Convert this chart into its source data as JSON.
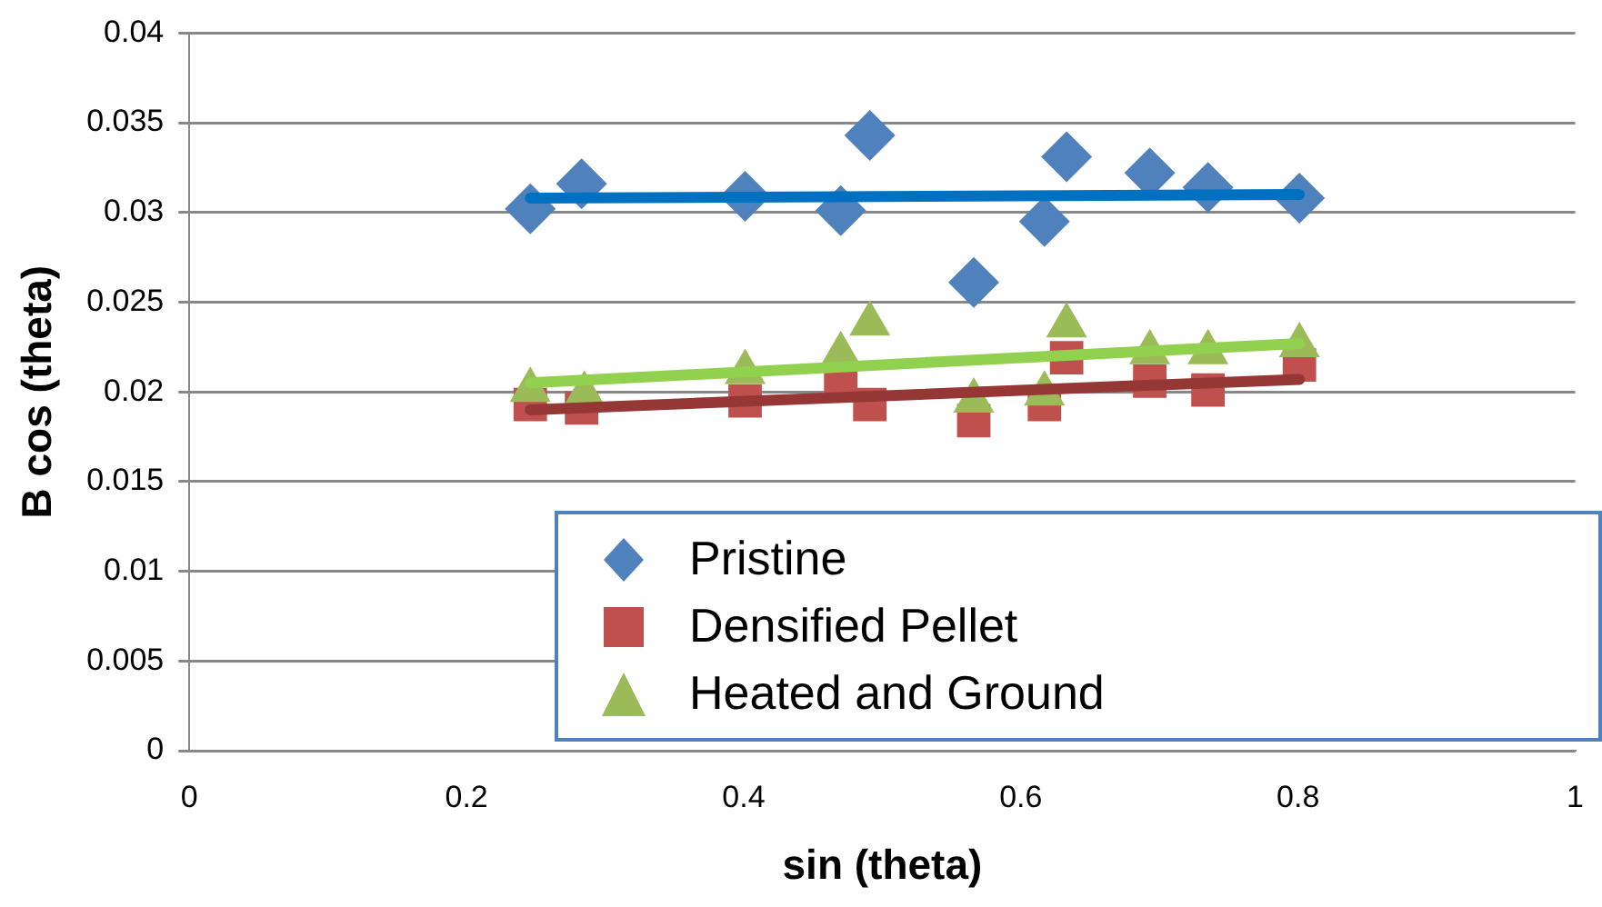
{
  "chart_data": {
    "type": "scatter",
    "xlabel": "sin (theta)",
    "ylabel": "B cos (theta)",
    "xlim": [
      0,
      1
    ],
    "xticks": [
      0,
      0.2,
      0.4,
      0.6,
      0.8,
      1
    ],
    "ylim": [
      0,
      0.04
    ],
    "yticks": [
      0,
      0.005,
      0.01,
      0.015,
      0.02,
      0.025,
      0.03,
      0.035,
      0.04
    ],
    "grid": "y",
    "legend": "bottom right",
    "series": [
      {
        "name": "Pristine",
        "color": "#4f81bd",
        "marker": "diamond",
        "x": [
          0.246,
          0.283,
          0.401,
          0.47,
          0.491,
          0.566,
          0.617,
          0.633,
          0.693,
          0.735,
          0.801
        ],
        "values": [
          0.0302,
          0.0316,
          0.0309,
          0.0301,
          0.0343,
          0.0261,
          0.0295,
          0.0331,
          0.0322,
          0.0314,
          0.0308
        ]
      },
      {
        "name": "Densified Pellet",
        "color": "#c0504d",
        "marker": "square",
        "x": [
          0.246,
          0.283,
          0.401,
          0.47,
          0.491,
          0.566,
          0.617,
          0.633,
          0.693,
          0.735,
          0.801
        ],
        "values": [
          0.0193,
          0.0191,
          0.0195,
          0.0204,
          0.0193,
          0.0184,
          0.0193,
          0.0219,
          0.0206,
          0.0201,
          0.0215
        ]
      },
      {
        "name": "Heated and Ground",
        "color": "#9bbb59",
        "marker": "triangle",
        "x": [
          0.246,
          0.285,
          0.401,
          0.47,
          0.491,
          0.566,
          0.617,
          0.633,
          0.693,
          0.735,
          0.801
        ],
        "values": [
          0.0201,
          0.0199,
          0.0211,
          0.0221,
          0.0238,
          0.0195,
          0.0199,
          0.0237,
          0.0222,
          0.0222,
          0.0226
        ]
      },
      {
        "type": "line",
        "color": "#0070c0",
        "marker": "none",
        "x": [
          0.246,
          0.801
        ],
        "values": [
          0.0308,
          0.031
        ]
      },
      {
        "type": "line",
        "color": "#953735",
        "marker": "none",
        "x": [
          0.246,
          0.801
        ],
        "values": [
          0.019,
          0.0207
        ]
      },
      {
        "type": "line",
        "color": "#92d050",
        "marker": "none",
        "x": [
          0.246,
          0.801
        ],
        "values": [
          0.0205,
          0.0227
        ]
      }
    ]
  }
}
